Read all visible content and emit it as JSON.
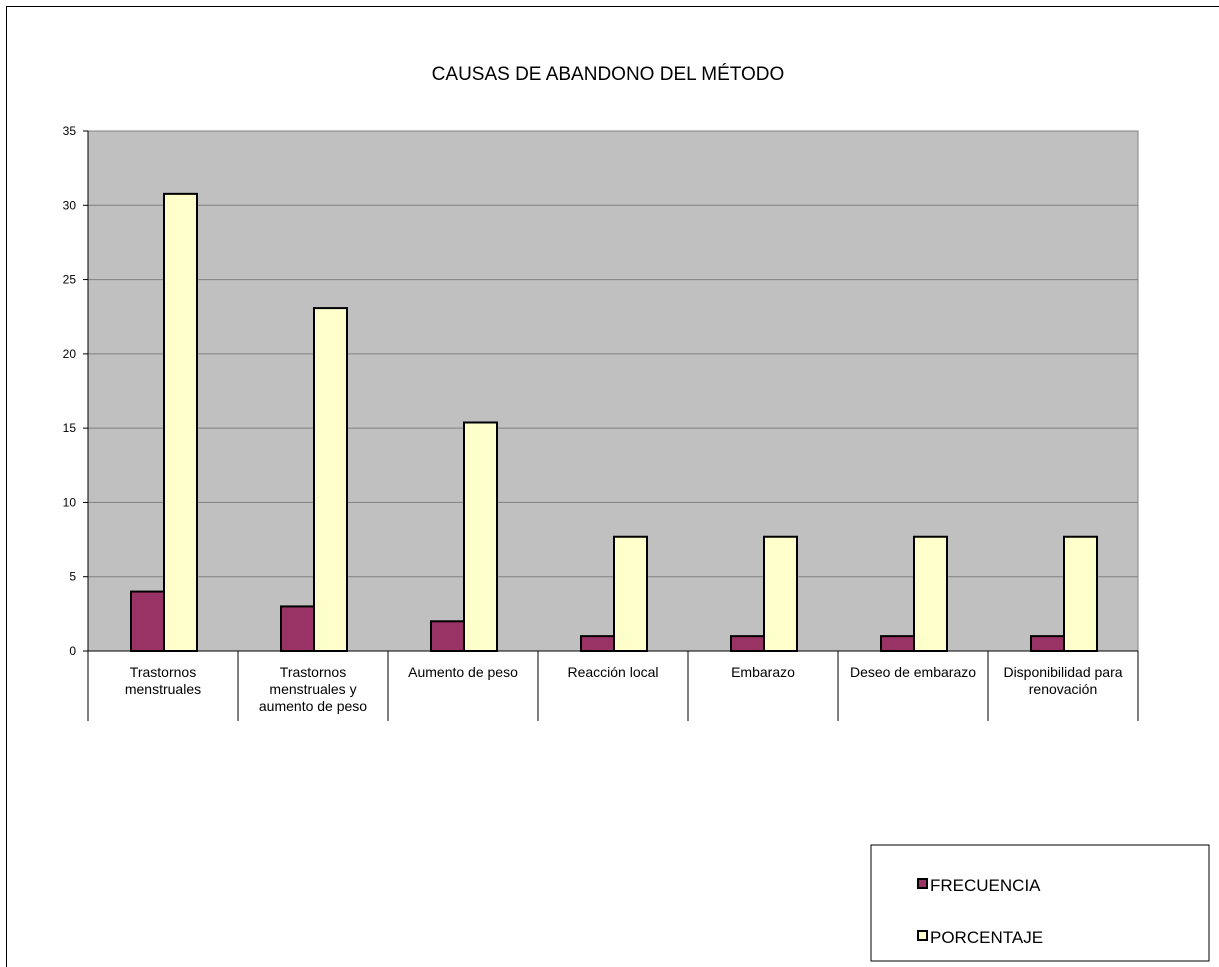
{
  "chart_data": {
    "type": "bar",
    "title": "CAUSAS DE ABANDONO DEL MÉTODO",
    "xlabel": "",
    "ylabel": "",
    "ylim": [
      0,
      35
    ],
    "yticks": [
      0,
      5,
      10,
      15,
      20,
      25,
      30,
      35
    ],
    "grid": true,
    "legend_position": "bottom-right",
    "categories": [
      [
        "Trastornos",
        "menstruales"
      ],
      [
        "Trastornos",
        "menstruales y",
        "aumento de peso"
      ],
      [
        "Aumento de peso"
      ],
      [
        "Reacción local"
      ],
      [
        "Embarazo"
      ],
      [
        "Deseo de embarazo"
      ],
      [
        "Disponibilidad para",
        "renovación"
      ]
    ],
    "series": [
      {
        "name": "FRECUENCIA",
        "color": "#993366",
        "values": [
          4,
          3,
          2,
          1,
          1,
          1,
          1
        ]
      },
      {
        "name": "PORCENTAJE",
        "color": "#FFFFCC",
        "values": [
          30.77,
          23.08,
          15.38,
          7.69,
          7.69,
          7.69,
          7.69
        ]
      }
    ],
    "plot_background": "#C0C0C0"
  }
}
